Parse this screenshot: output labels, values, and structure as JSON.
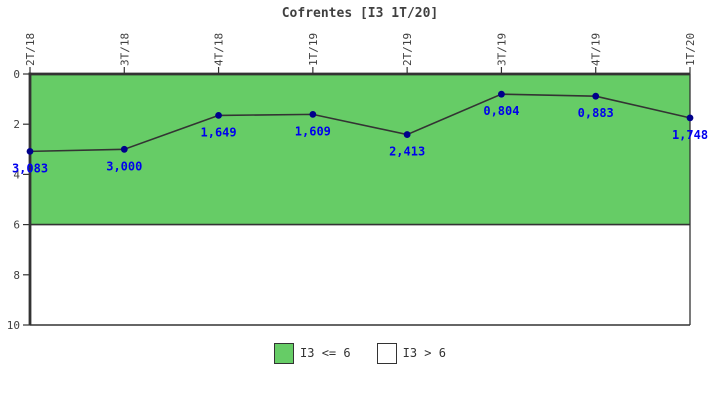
{
  "chart_data": {
    "type": "line",
    "title": "Cofrentes [I3 1T/20]",
    "categories": [
      "2T/18",
      "3T/18",
      "4T/18",
      "1T/19",
      "2T/19",
      "3T/19",
      "4T/19",
      "1T/20"
    ],
    "values": [
      3.083,
      3.0,
      1.649,
      1.609,
      2.413,
      0.804,
      0.883,
      1.748
    ],
    "value_labels": [
      "3,083",
      "3,000",
      "1,649",
      "1,609",
      "2,413",
      "0,804",
      "0,883",
      "1,748"
    ],
    "xlabel": "",
    "ylabel": "",
    "ylim": [
      0,
      10
    ],
    "y_axis_inverted": true,
    "yticks": [
      0,
      2,
      4,
      6,
      8,
      10
    ],
    "grid": false,
    "threshold": 6,
    "legend_position": "bottom",
    "legend": [
      {
        "label": "I3 <= 6",
        "color": "#66CC66"
      },
      {
        "label": "I3 > 6",
        "color": "#FFFFFF"
      }
    ],
    "colors": {
      "band_ok": "#66CC66",
      "band_exceed": "#FFFFFF",
      "line": "#333333",
      "point": "#00008B",
      "value_label": "#0000EE",
      "axis": "#333333",
      "tick_text": "#404040",
      "title_text": "#404040"
    }
  }
}
